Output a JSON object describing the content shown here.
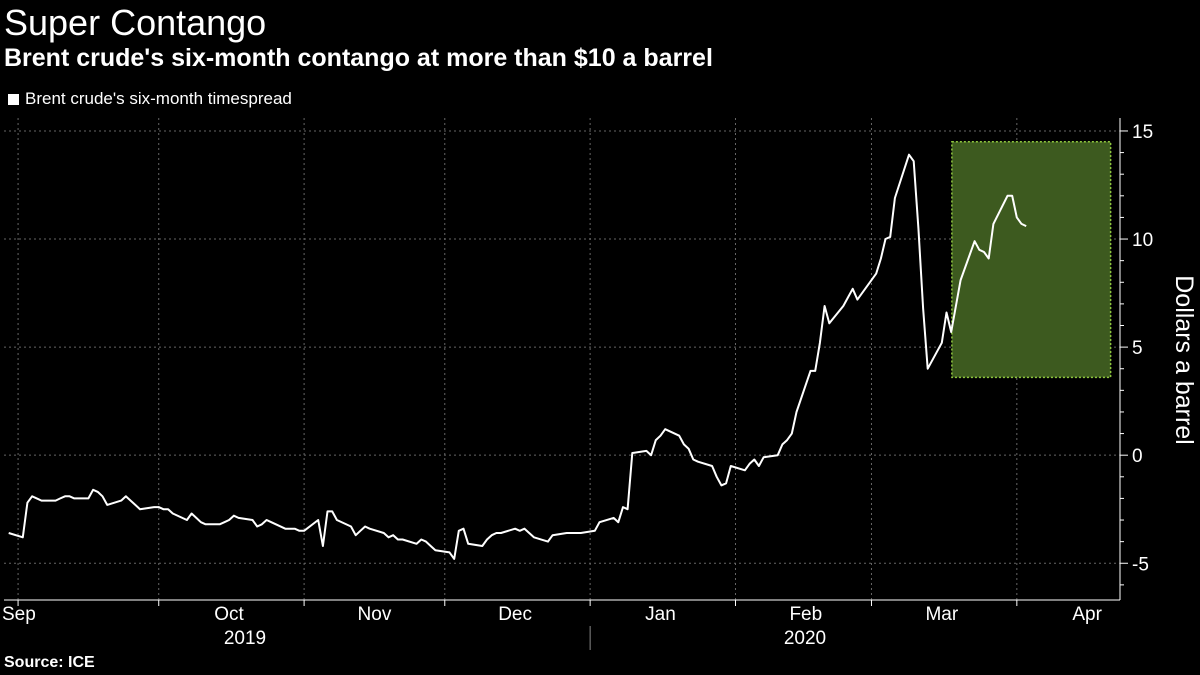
{
  "title": "Super Contango",
  "subtitle": "Brent crude's six-month contango at more than $10 a barrel",
  "source": "Source: ICE",
  "colors": {
    "background": "#000000",
    "line": "#ffffff",
    "highlight_fill": "#3d5a1f",
    "highlight_border": "#8fc73e",
    "grid": "#666666"
  },
  "chart_data": {
    "type": "line",
    "title": "Super Contango",
    "subtitle": "Brent crude's six-month contango at more than $10 a barrel",
    "ylabel": "Dollars a barrel",
    "xlabel": "",
    "ylim": [
      -6.7,
      15.6
    ],
    "yticks": [
      -5,
      0,
      5,
      10,
      15
    ],
    "y_axis_side": "right",
    "grid": true,
    "legend_position": "top-left",
    "x_month_labels": [
      {
        "label": "Sep",
        "date": "2019-09-01"
      },
      {
        "label": "Oct",
        "date": "2019-10-01"
      },
      {
        "label": "Nov",
        "date": "2019-11-01"
      },
      {
        "label": "Dec",
        "date": "2019-12-01"
      },
      {
        "label": "Jan",
        "date": "2020-01-01"
      },
      {
        "label": "Feb",
        "date": "2020-02-01"
      },
      {
        "label": "Mar",
        "date": "2020-03-01"
      },
      {
        "label": "Apr",
        "date": "2020-04-01"
      }
    ],
    "x_year_labels": [
      "2019",
      "2020"
    ],
    "highlight": {
      "x_start": "2020-03-19",
      "x_end": "2020-04-21",
      "y_min": 3.6,
      "y_max": 14.5
    },
    "series": [
      {
        "name": "Brent crude's six-month timespread",
        "points": [
          [
            "2019-08-30",
            -3.6
          ],
          [
            "2019-09-02",
            -3.8
          ],
          [
            "2019-09-03",
            -2.2
          ],
          [
            "2019-09-04",
            -1.9
          ],
          [
            "2019-09-05",
            -2.0
          ],
          [
            "2019-09-06",
            -2.1
          ],
          [
            "2019-09-09",
            -2.1
          ],
          [
            "2019-09-10",
            -2.0
          ],
          [
            "2019-09-11",
            -1.9
          ],
          [
            "2019-09-12",
            -1.9
          ],
          [
            "2019-09-13",
            -2.0
          ],
          [
            "2019-09-16",
            -2.0
          ],
          [
            "2019-09-17",
            -1.6
          ],
          [
            "2019-09-18",
            -1.7
          ],
          [
            "2019-09-19",
            -1.9
          ],
          [
            "2019-09-20",
            -2.3
          ],
          [
            "2019-09-23",
            -2.1
          ],
          [
            "2019-09-24",
            -1.9
          ],
          [
            "2019-09-25",
            -2.1
          ],
          [
            "2019-09-26",
            -2.3
          ],
          [
            "2019-09-27",
            -2.5
          ],
          [
            "2019-09-30",
            -2.4
          ],
          [
            "2019-10-01",
            -2.4
          ],
          [
            "2019-10-02",
            -2.5
          ],
          [
            "2019-10-03",
            -2.5
          ],
          [
            "2019-10-04",
            -2.7
          ],
          [
            "2019-10-07",
            -3.0
          ],
          [
            "2019-10-08",
            -2.7
          ],
          [
            "2019-10-09",
            -2.9
          ],
          [
            "2019-10-10",
            -3.1
          ],
          [
            "2019-10-11",
            -3.2
          ],
          [
            "2019-10-14",
            -3.2
          ],
          [
            "2019-10-15",
            -3.1
          ],
          [
            "2019-10-16",
            -3.0
          ],
          [
            "2019-10-17",
            -2.8
          ],
          [
            "2019-10-18",
            -2.9
          ],
          [
            "2019-10-21",
            -3.0
          ],
          [
            "2019-10-22",
            -3.3
          ],
          [
            "2019-10-23",
            -3.2
          ],
          [
            "2019-10-24",
            -3.0
          ],
          [
            "2019-10-25",
            -3.1
          ],
          [
            "2019-10-28",
            -3.4
          ],
          [
            "2019-10-29",
            -3.4
          ],
          [
            "2019-10-30",
            -3.4
          ],
          [
            "2019-10-31",
            -3.5
          ],
          [
            "2019-11-01",
            -3.5
          ],
          [
            "2019-11-04",
            -3.0
          ],
          [
            "2019-11-05",
            -4.2
          ],
          [
            "2019-11-06",
            -2.6
          ],
          [
            "2019-11-07",
            -2.6
          ],
          [
            "2019-11-08",
            -3.0
          ],
          [
            "2019-11-11",
            -3.3
          ],
          [
            "2019-11-12",
            -3.7
          ],
          [
            "2019-11-13",
            -3.5
          ],
          [
            "2019-11-14",
            -3.3
          ],
          [
            "2019-11-15",
            -3.4
          ],
          [
            "2019-11-18",
            -3.6
          ],
          [
            "2019-11-19",
            -3.8
          ],
          [
            "2019-11-20",
            -3.7
          ],
          [
            "2019-11-21",
            -3.9
          ],
          [
            "2019-11-22",
            -3.9
          ],
          [
            "2019-11-25",
            -4.1
          ],
          [
            "2019-11-26",
            -3.9
          ],
          [
            "2019-11-27",
            -4.0
          ],
          [
            "2019-11-28",
            -4.2
          ],
          [
            "2019-11-29",
            -4.4
          ],
          [
            "2019-12-02",
            -4.5
          ],
          [
            "2019-12-03",
            -4.8
          ],
          [
            "2019-12-04",
            -3.5
          ],
          [
            "2019-12-05",
            -3.4
          ],
          [
            "2019-12-06",
            -4.1
          ],
          [
            "2019-12-09",
            -4.2
          ],
          [
            "2019-12-10",
            -3.9
          ],
          [
            "2019-12-11",
            -3.7
          ],
          [
            "2019-12-12",
            -3.6
          ],
          [
            "2019-12-13",
            -3.6
          ],
          [
            "2019-12-16",
            -3.4
          ],
          [
            "2019-12-17",
            -3.5
          ],
          [
            "2019-12-18",
            -3.4
          ],
          [
            "2019-12-19",
            -3.6
          ],
          [
            "2019-12-20",
            -3.8
          ],
          [
            "2019-12-23",
            -4.0
          ],
          [
            "2019-12-24",
            -3.7
          ],
          [
            "2019-12-27",
            -3.6
          ],
          [
            "2019-12-30",
            -3.6
          ],
          [
            "2020-01-02",
            -3.5
          ],
          [
            "2020-01-03",
            -3.1
          ],
          [
            "2020-01-06",
            -2.9
          ],
          [
            "2020-01-07",
            -3.1
          ],
          [
            "2020-01-08",
            -2.4
          ],
          [
            "2020-01-09",
            -2.5
          ],
          [
            "2020-01-10",
            0.1
          ],
          [
            "2020-01-13",
            0.2
          ],
          [
            "2020-01-14",
            0.0
          ],
          [
            "2020-01-15",
            0.7
          ],
          [
            "2020-01-16",
            0.9
          ],
          [
            "2020-01-17",
            1.2
          ],
          [
            "2020-01-20",
            0.9
          ],
          [
            "2020-01-21",
            0.5
          ],
          [
            "2020-01-22",
            0.3
          ],
          [
            "2020-01-23",
            -0.2
          ],
          [
            "2020-01-24",
            -0.3
          ],
          [
            "2020-01-27",
            -0.5
          ],
          [
            "2020-01-28",
            -1.0
          ],
          [
            "2020-01-29",
            -1.4
          ],
          [
            "2020-01-30",
            -1.3
          ],
          [
            "2020-01-31",
            -0.5
          ],
          [
            "2020-02-03",
            -0.7
          ],
          [
            "2020-02-04",
            -0.4
          ],
          [
            "2020-02-05",
            -0.2
          ],
          [
            "2020-02-06",
            -0.5
          ],
          [
            "2020-02-07",
            -0.1
          ],
          [
            "2020-02-10",
            0.0
          ],
          [
            "2020-02-11",
            0.5
          ],
          [
            "2020-02-12",
            0.7
          ],
          [
            "2020-02-13",
            1.0
          ],
          [
            "2020-02-14",
            2.0
          ],
          [
            "2020-02-17",
            3.9
          ],
          [
            "2020-02-18",
            3.9
          ],
          [
            "2020-02-19",
            5.2
          ],
          [
            "2020-02-20",
            6.9
          ],
          [
            "2020-02-21",
            6.1
          ],
          [
            "2020-02-24",
            6.9
          ],
          [
            "2020-02-25",
            7.3
          ],
          [
            "2020-02-26",
            7.7
          ],
          [
            "2020-02-27",
            7.2
          ],
          [
            "2020-02-28",
            7.5
          ],
          [
            "2020-03-02",
            8.4
          ],
          [
            "2020-03-03",
            9.1
          ],
          [
            "2020-03-04",
            10.0
          ],
          [
            "2020-03-05",
            10.1
          ],
          [
            "2020-03-06",
            11.9
          ],
          [
            "2020-03-09",
            13.9
          ],
          [
            "2020-03-10",
            13.6
          ],
          [
            "2020-03-11",
            10.5
          ],
          [
            "2020-03-12",
            6.8
          ],
          [
            "2020-03-13",
            4.0
          ],
          [
            "2020-03-16",
            5.2
          ],
          [
            "2020-03-17",
            6.6
          ],
          [
            "2020-03-18",
            5.7
          ],
          [
            "2020-03-19",
            6.9
          ],
          [
            "2020-03-20",
            8.1
          ],
          [
            "2020-03-23",
            9.9
          ],
          [
            "2020-03-24",
            9.5
          ],
          [
            "2020-03-25",
            9.4
          ],
          [
            "2020-03-26",
            9.1
          ],
          [
            "2020-03-27",
            10.7
          ],
          [
            "2020-03-30",
            12.0
          ],
          [
            "2020-03-31",
            12.0
          ],
          [
            "2020-04-01",
            11.0
          ],
          [
            "2020-04-02",
            10.7
          ],
          [
            "2020-04-03",
            10.6
          ]
        ]
      }
    ]
  },
  "legend": {
    "label": "Brent crude's six-month timespread"
  }
}
